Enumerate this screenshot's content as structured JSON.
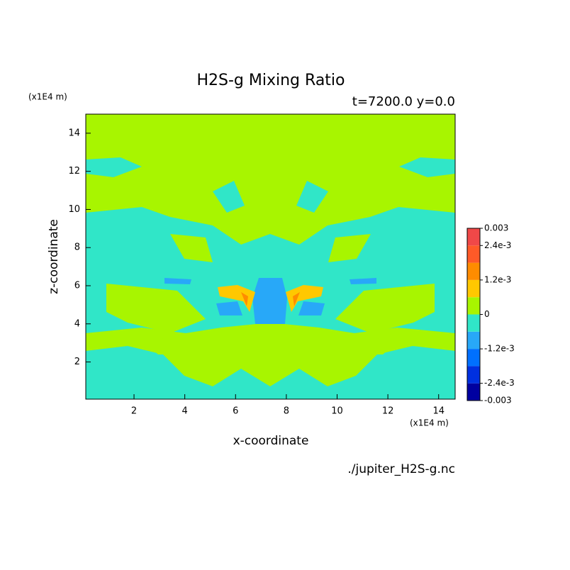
{
  "chart_data": {
    "type": "contour",
    "title": "H2S-g Mixing Ratio",
    "subtitle": "t=7200.0 y=0.0",
    "x_label": "x-coordinate",
    "y_label": "z-coordinate",
    "x_unit": "(x1E4 m)",
    "y_unit": "(x1E4 m)",
    "source": "./jupiter_H2S-g.nc",
    "xlim": [
      0.1,
      14.65
    ],
    "ylim": [
      0.05,
      15
    ],
    "xticks": [
      2,
      4,
      6,
      8,
      10,
      12,
      14
    ],
    "yticks": [
      2,
      4,
      6,
      8,
      10,
      12,
      14
    ],
    "colorbar": {
      "levels": [
        -0.003,
        -0.0024,
        -0.0018,
        -0.0012,
        -0.0006,
        0,
        0.0006,
        0.0012,
        0.0018,
        0.0024,
        0.003
      ],
      "colors": [
        "#0000a0",
        "#0030e0",
        "#0070ff",
        "#28a8f8",
        "#30e6c8",
        "#a8f500",
        "#ffc800",
        "#ff8c00",
        "#ff5a28",
        "#f04848"
      ],
      "ticks": [
        0.003,
        {
          "value": 0.0024,
          "label": "2.4e-3"
        },
        {
          "value": 0.0012,
          "label": "1.2e-3"
        },
        0,
        {
          "value": -0.0012,
          "label": "-1.2e-3"
        },
        {
          "value": -0.0024,
          "label": "-2.4e-3"
        },
        -0.003
      ]
    }
  }
}
